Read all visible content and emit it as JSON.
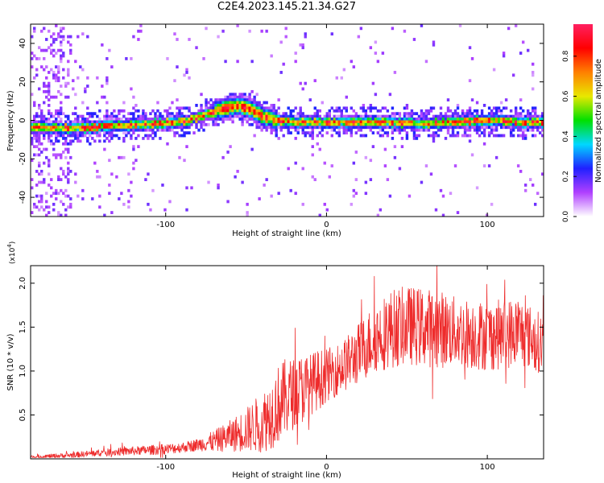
{
  "title": "C2E4.2023.145.21.34.G27",
  "colors": {
    "snr_line": "#ee2b2b",
    "colormap": [
      "#ffffff",
      "#b040ff",
      "#2020ff",
      "#00d8ff",
      "#00e000",
      "#e8e800",
      "#ff8000",
      "#ff0000",
      "#ff2060"
    ]
  },
  "chart_data": [
    {
      "type": "heatmap",
      "title": "C2E4.2023.145.21.34.G27",
      "xlabel": "Height of straight line (km)",
      "ylabel": "Frequency (Hz)",
      "xlim": [
        -184,
        135
      ],
      "ylim": [
        -50,
        50
      ],
      "x_ticks": [
        "-100",
        "0",
        "100"
      ],
      "y_ticks": [
        "40",
        "20",
        "0",
        "-20",
        "-40"
      ],
      "colorbar": {
        "label": "Normalized spectral amplitude",
        "range": [
          0,
          0.96
        ],
        "ticks": [
          "0.0",
          "0.2",
          "0.4",
          "0.6",
          "0.8"
        ]
      },
      "ridge": {
        "x": [
          -184,
          -170,
          -150,
          -130,
          -110,
          -95,
          -85,
          -75,
          -65,
          -55,
          -48,
          -40,
          -35,
          -30,
          -20,
          0,
          20,
          40,
          60,
          80,
          100,
          120,
          135
        ],
        "y": [
          -4,
          -4,
          -4,
          -3,
          -2,
          -1,
          0,
          3,
          6,
          8,
          6,
          2,
          1,
          0,
          -1,
          -1,
          -1,
          -1,
          -2,
          -1,
          0,
          -1,
          -1
        ]
      }
    },
    {
      "type": "line",
      "xlabel": "Height of straight line (km)",
      "ylabel": "SNR (10 * v/v)",
      "y_multiplier": "(x10^4)",
      "xlim": [
        -184,
        135
      ],
      "ylim": [
        0,
        22000
      ],
      "x_ticks": [
        "-100",
        "0",
        "100"
      ],
      "y_ticks": [
        "0.5",
        "1.0",
        "1.5",
        "2.0"
      ],
      "series": [
        {
          "x": [
            -184,
            -160,
            -140,
            -120,
            -100,
            -90,
            -80,
            -70,
            -60,
            -50,
            -40,
            -35,
            -30,
            -25,
            -20,
            -15,
            -10,
            -5,
            0,
            10,
            20,
            30,
            40,
            50,
            60,
            70,
            80,
            90,
            100,
            110,
            120,
            130,
            135
          ],
          "values": [
            200,
            400,
            700,
            900,
            1100,
            1300,
            1600,
            2000,
            2600,
            3300,
            4200,
            5000,
            6200,
            7000,
            7500,
            8000,
            8500,
            9000,
            9500,
            10500,
            12000,
            13800,
            14800,
            15200,
            15000,
            14800,
            14500,
            14200,
            14000,
            14200,
            14500,
            13500,
            13000
          ],
          "noise_amplitude": [
            200,
            300,
            400,
            500,
            600,
            600,
            700,
            1200,
            1800,
            2500,
            3500,
            4000,
            4500,
            4500,
            4000,
            4000,
            3500,
            3500,
            3000,
            3000,
            3500,
            4000,
            4500,
            4500,
            4500,
            4500,
            4000,
            4000,
            4000,
            4000,
            4000,
            3500,
            3500
          ]
        }
      ]
    }
  ]
}
